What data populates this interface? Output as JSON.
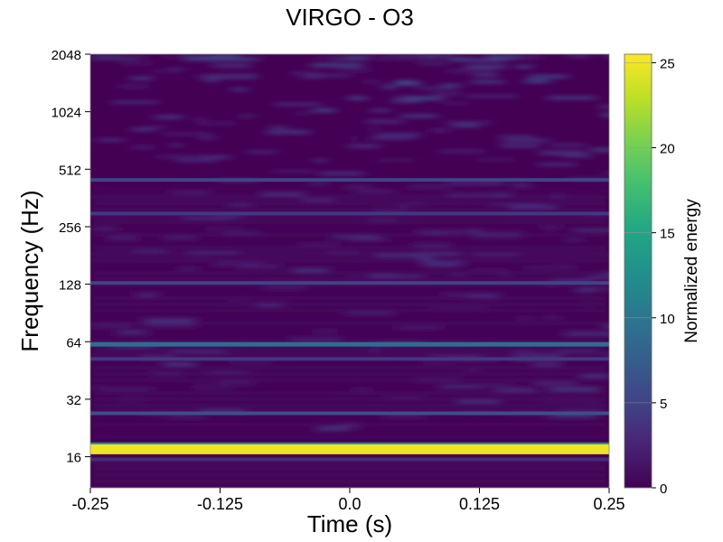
{
  "chart_data": {
    "type": "heatmap",
    "title": "VIRGO - O3",
    "xlabel": "Time (s)",
    "ylabel": "Frequency (Hz)",
    "colorbar_label": "Normalized energy",
    "x_ticks": [
      "-0.25",
      "-0.125",
      "0.0",
      "0.125",
      "0.25"
    ],
    "x_tick_values": [
      -0.25,
      -0.125,
      0.0,
      0.125,
      0.25
    ],
    "xlim": [
      -0.25,
      0.25
    ],
    "y_scale": "log2",
    "y_ticks": [
      "16",
      "32",
      "64",
      "128",
      "256",
      "512",
      "1024",
      "2048"
    ],
    "y_tick_values": [
      16,
      32,
      64,
      128,
      256,
      512,
      1024,
      2048
    ],
    "ylim": [
      11,
      2048
    ],
    "colorbar_ticks": [
      "0",
      "5",
      "10",
      "15",
      "20",
      "25"
    ],
    "colorbar_tick_values": [
      0,
      5,
      10,
      15,
      20,
      25
    ],
    "colorbar_range": [
      0,
      25.5
    ],
    "colormap": "viridis",
    "grid": false,
    "features": [
      {
        "frequency_hz": 17.5,
        "energy": 25,
        "t_start": -0.25,
        "t_end": 0.25
      },
      {
        "frequency_hz": 18.5,
        "energy": 12,
        "t_start": -0.25,
        "t_end": 0.25
      },
      {
        "frequency_hz": 15.5,
        "energy": 3,
        "t_start": -0.25,
        "t_end": 0.25
      },
      {
        "frequency_hz": 27,
        "energy": 6,
        "t_start": -0.25,
        "t_end": 0.25
      },
      {
        "frequency_hz": 62,
        "energy": 9,
        "t_start": -0.25,
        "t_end": 0.25
      },
      {
        "frequency_hz": 52,
        "energy": 4,
        "t_start": -0.25,
        "t_end": 0.25
      },
      {
        "frequency_hz": 130,
        "energy": 5,
        "t_start": -0.25,
        "t_end": 0.25
      },
      {
        "frequency_hz": 300,
        "energy": 4,
        "t_start": -0.25,
        "t_end": 0.25
      },
      {
        "frequency_hz": 450,
        "energy": 5,
        "t_start": -0.25,
        "t_end": 0.25
      }
    ]
  }
}
